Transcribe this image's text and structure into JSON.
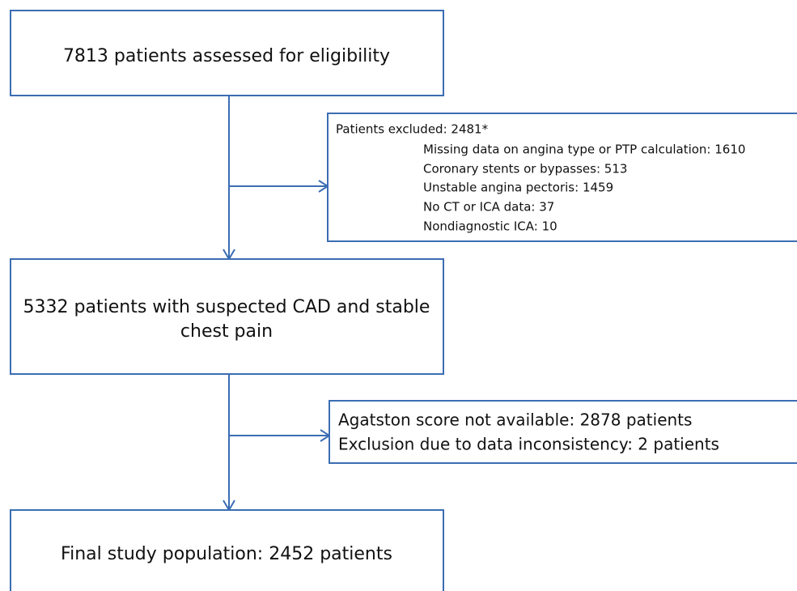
{
  "nodes": [
    {
      "lines": [
        "7813 patients assessed for eligibility"
      ]
    },
    {
      "lines": [
        "5332 patients with suspected CAD and stable",
        "chest pain"
      ]
    },
    {
      "lines": [
        "Final study population: 2452 patients"
      ]
    }
  ],
  "exclusions": [
    {
      "title": "Patients excluded: 2481*",
      "items": [
        "Missing data on angina type or PTP calculation: 1610",
        "Coronary stents or bypasses: 513",
        "Unstable angina pectoris: 1459",
        "No CT or ICA data: 37",
        "Nondiagnostic ICA: 10"
      ]
    },
    {
      "items": [
        "Agatston score not available: 2878 patients",
        "Exclusion due to data inconsistency: 2 patients"
      ]
    }
  ]
}
